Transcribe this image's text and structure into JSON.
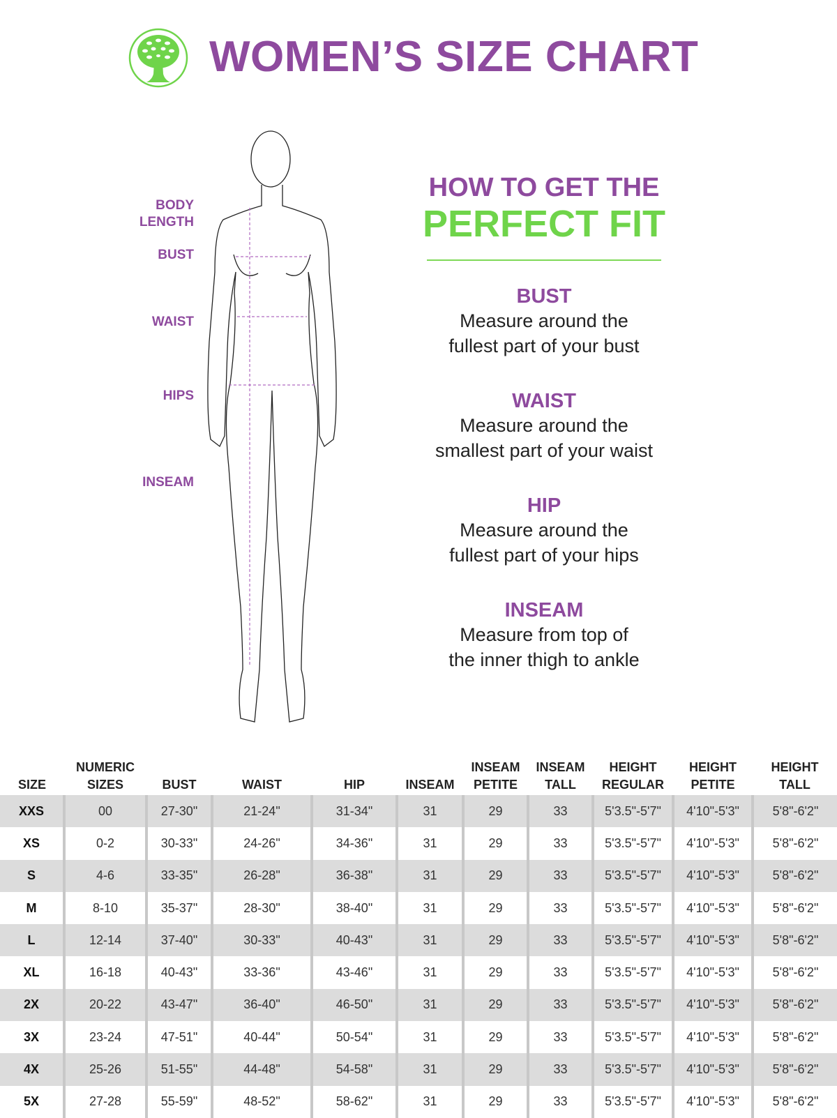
{
  "header": {
    "title": "WOMEN’S SIZE CHART",
    "logo": "tree-logo",
    "brand_green": "#6fd44a",
    "brand_purple": "#8e4a9e"
  },
  "figure_labels": [
    "BODY\nLENGTH",
    "BUST",
    "WAIST",
    "HIPS",
    "INSEAM"
  ],
  "fit": {
    "heading_top": "HOW TO GET THE",
    "heading_bottom": "PERFECT FIT",
    "tips": [
      {
        "title": "BUST",
        "lines": [
          "Measure around the",
          "fullest part of your bust"
        ]
      },
      {
        "title": "WAIST",
        "lines": [
          "Measure around the",
          "smallest part of your waist"
        ]
      },
      {
        "title": "HIP",
        "lines": [
          "Measure around the",
          "fullest part of your hips"
        ]
      },
      {
        "title": "INSEAM",
        "lines": [
          "Measure from top of",
          "the inner thigh to ankle"
        ]
      }
    ]
  },
  "table": {
    "headers": [
      [
        "SIZE"
      ],
      [
        "NUMERIC",
        "SIZES"
      ],
      [
        "BUST"
      ],
      [
        "WAIST"
      ],
      [
        "HIP"
      ],
      [
        "INSEAM"
      ],
      [
        "INSEAM",
        "PETITE"
      ],
      [
        "INSEAM",
        "TALL"
      ],
      [
        "HEIGHT",
        "REGULAR"
      ],
      [
        "HEIGHT",
        "PETITE"
      ],
      [
        "HEIGHT",
        "TALL"
      ]
    ],
    "rows": [
      [
        "XXS",
        "00",
        "27-30\"",
        "21-24\"",
        "31-34\"",
        "31",
        "29",
        "33",
        "5'3.5\"-5'7\"",
        "4'10\"-5'3\"",
        "5'8\"-6'2\""
      ],
      [
        "XS",
        "0-2",
        "30-33\"",
        "24-26\"",
        "34-36\"",
        "31",
        "29",
        "33",
        "5'3.5\"-5'7\"",
        "4'10\"-5'3\"",
        "5'8\"-6'2\""
      ],
      [
        "S",
        "4-6",
        "33-35\"",
        "26-28\"",
        "36-38\"",
        "31",
        "29",
        "33",
        "5'3.5\"-5'7\"",
        "4'10\"-5'3\"",
        "5'8\"-6'2\""
      ],
      [
        "M",
        "8-10",
        "35-37\"",
        "28-30\"",
        "38-40\"",
        "31",
        "29",
        "33",
        "5'3.5\"-5'7\"",
        "4'10\"-5'3\"",
        "5'8\"-6'2\""
      ],
      [
        "L",
        "12-14",
        "37-40\"",
        "30-33\"",
        "40-43\"",
        "31",
        "29",
        "33",
        "5'3.5\"-5'7\"",
        "4'10\"-5'3\"",
        "5'8\"-6'2\""
      ],
      [
        "XL",
        "16-18",
        "40-43\"",
        "33-36\"",
        "43-46\"",
        "31",
        "29",
        "33",
        "5'3.5\"-5'7\"",
        "4'10\"-5'3\"",
        "5'8\"-6'2\""
      ],
      [
        "2X",
        "20-22",
        "43-47\"",
        "36-40\"",
        "46-50\"",
        "31",
        "29",
        "33",
        "5'3.5\"-5'7\"",
        "4'10\"-5'3\"",
        "5'8\"-6'2\""
      ],
      [
        "3X",
        "23-24",
        "47-51\"",
        "40-44\"",
        "50-54\"",
        "31",
        "29",
        "33",
        "5'3.5\"-5'7\"",
        "4'10\"-5'3\"",
        "5'8\"-6'2\""
      ],
      [
        "4X",
        "25-26",
        "51-55\"",
        "44-48\"",
        "54-58\"",
        "31",
        "29",
        "33",
        "5'3.5\"-5'7\"",
        "4'10\"-5'3\"",
        "5'8\"-6'2\""
      ],
      [
        "5X",
        "27-28",
        "55-59\"",
        "48-52\"",
        "58-62\"",
        "31",
        "29",
        "33",
        "5'3.5\"-5'7\"",
        "4'10\"-5'3\"",
        "5'8\"-6'2\""
      ]
    ]
  }
}
